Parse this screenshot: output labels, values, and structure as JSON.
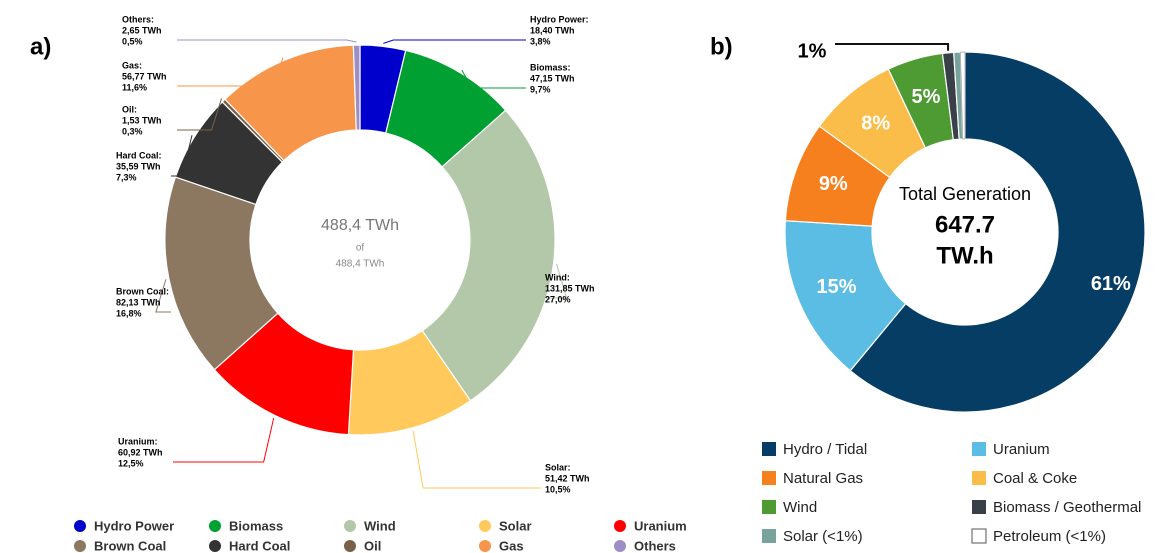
{
  "chart_data": [
    {
      "type": "donut",
      "panel_label": "a)",
      "center_text": [
        "488,4 TWh",
        "of",
        "488,4 TWh"
      ],
      "categories": [
        "Hydro Power",
        "Biomass",
        "Wind",
        "Solar",
        "Uranium",
        "Brown Coal",
        "Hard Coal",
        "Oil",
        "Gas",
        "Others"
      ],
      "callout_names": [
        "Hydro Power:",
        "Biomass:",
        "Wind:",
        "Solar:",
        "Uranium:",
        "Brown Coal:",
        "Hard Coal:",
        "Oil:",
        "Gas:",
        "Others:"
      ],
      "values": [
        18.4,
        47.15,
        131.85,
        51.42,
        60.92,
        82.13,
        35.59,
        1.53,
        56.77,
        2.65
      ],
      "value_labels": [
        "18,40 TWh",
        "47,15 TWh",
        "131,85 TWh",
        "51,42 TWh",
        "60,92 TWh",
        "82,13 TWh",
        "35,59 TWh",
        "1,53 TWh",
        "56,77 TWh",
        "2,65 TWh"
      ],
      "percents": [
        3.8,
        9.7,
        27.0,
        10.5,
        12.5,
        16.8,
        7.3,
        0.3,
        11.6,
        0.5
      ],
      "percent_labels": [
        "3,8%",
        "9,7%",
        "27,0%",
        "10,5%",
        "12,5%",
        "16,8%",
        "7,3%",
        "0,3%",
        "11,6%",
        "0,5%"
      ],
      "colors": [
        "#0000cc",
        "#00a032",
        "#b3c8a8",
        "#ffc95c",
        "#ff0000",
        "#8c7761",
        "#333333",
        "#7a6049",
        "#f7954a",
        "#9d8fc4"
      ]
    },
    {
      "type": "donut",
      "panel_label": "b)",
      "center_text": [
        "Total Generation",
        "647.7",
        "TW.h"
      ],
      "categories": [
        "Hydro / Tidal",
        "Uranium",
        "Natural Gas",
        "Coal & Coke",
        "Wind",
        "Biomass / Geothermal",
        "Solar (<1%)",
        "Petroleum (<1%)"
      ],
      "values": [
        61,
        15,
        9,
        8,
        5,
        1,
        0.6,
        0.4
      ],
      "value_labels": [
        "61%",
        "15%",
        "9%",
        "8%",
        "5%",
        "1%",
        null,
        null
      ],
      "colors": [
        "#063d64",
        "#5bbde4",
        "#f7801e",
        "#fbbd4a",
        "#4e9a33",
        "#3a4048",
        "#77a39c",
        "#ffffff"
      ]
    }
  ]
}
